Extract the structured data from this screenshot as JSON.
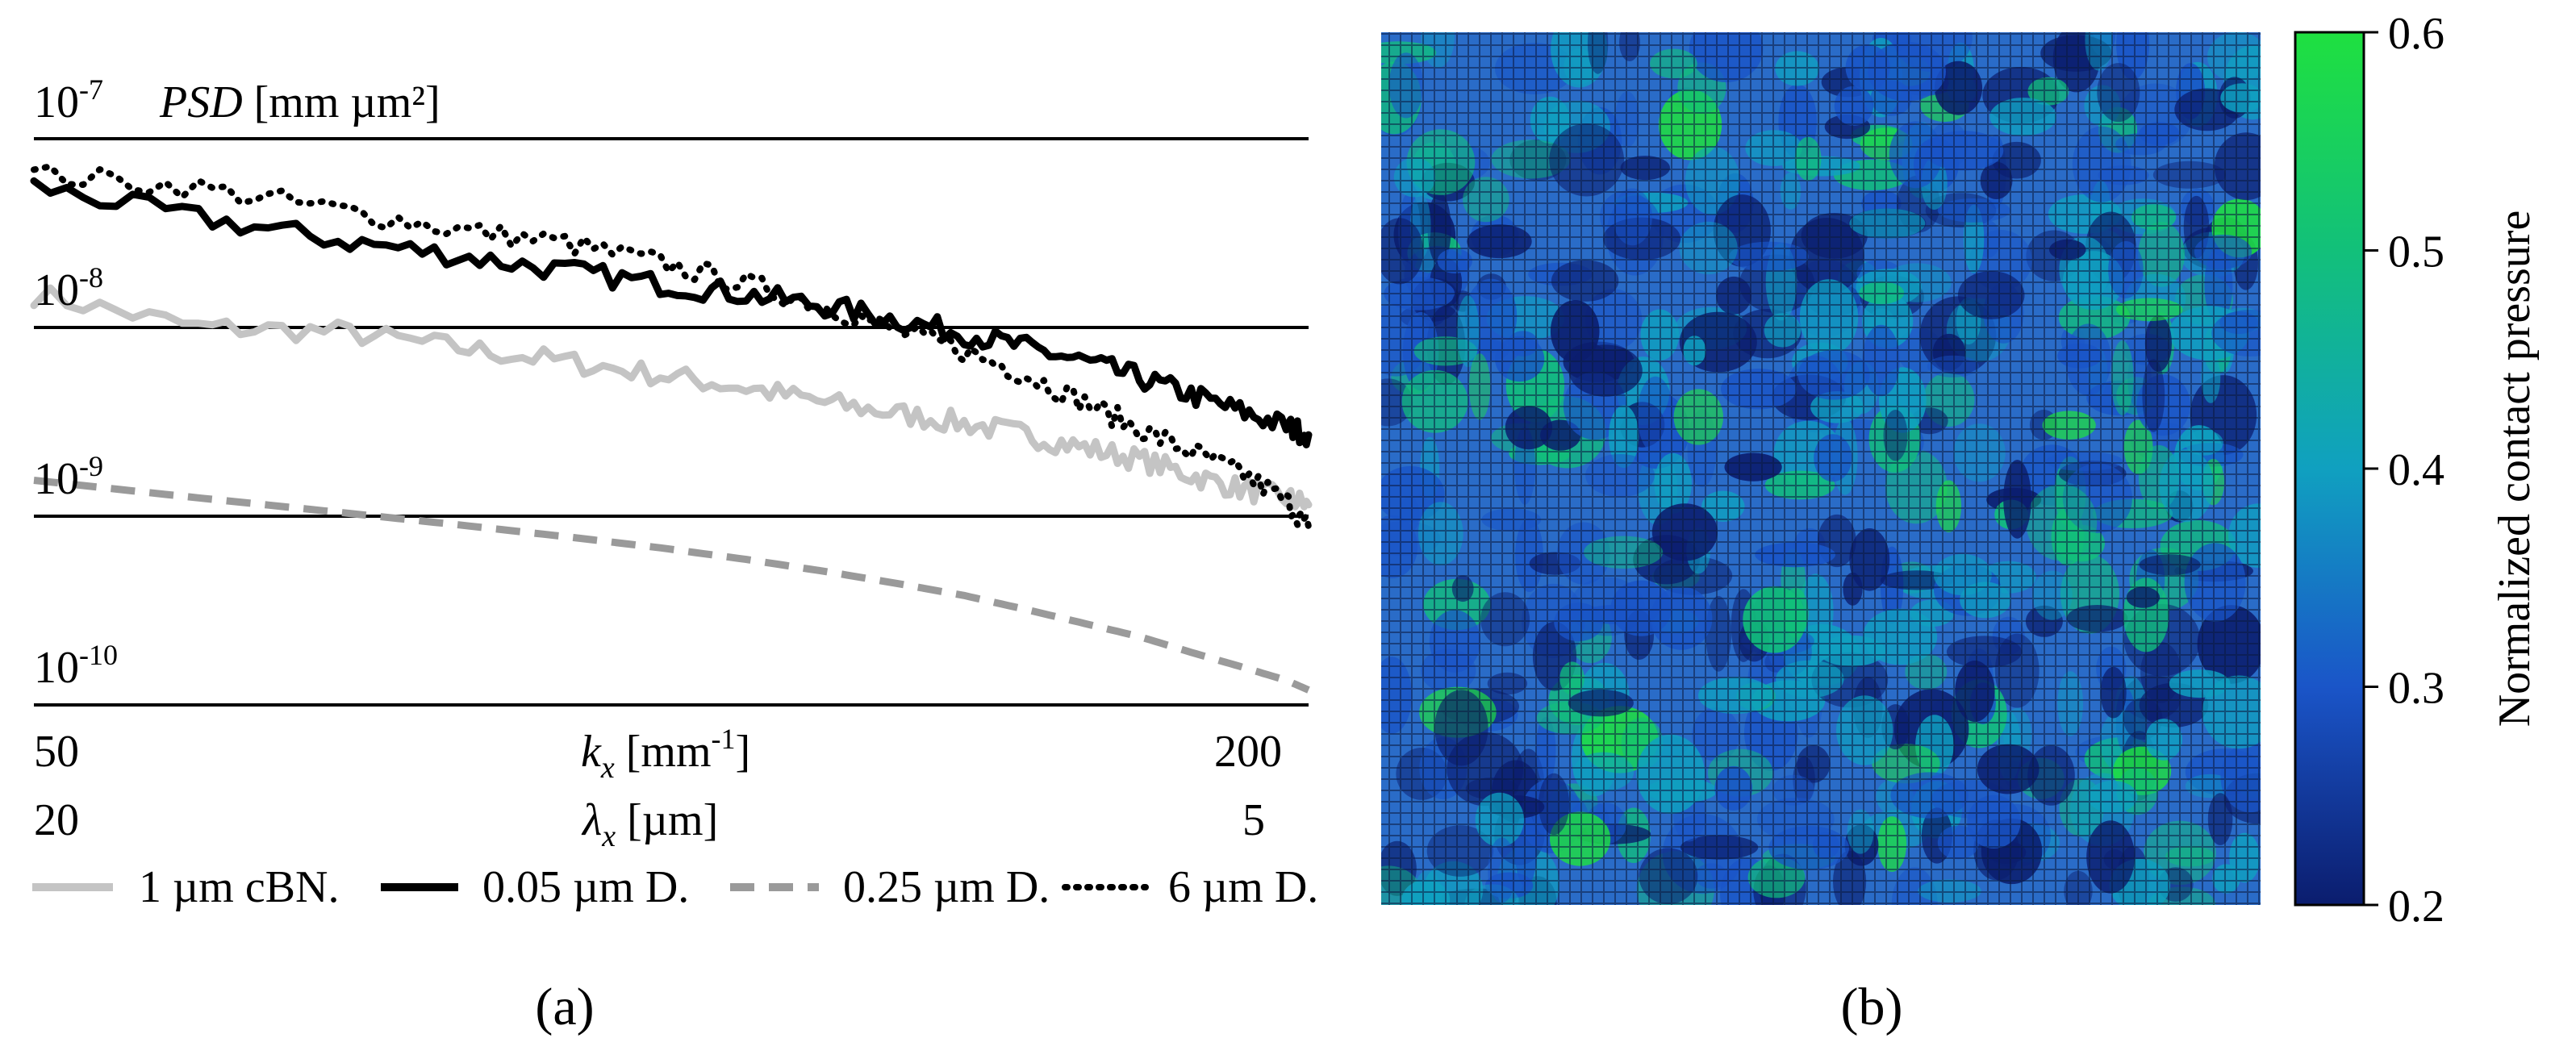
{
  "chart_data": [
    {
      "id": "a",
      "type": "line",
      "panel_label": "(a)",
      "ylabel_prefix": "PSD",
      "ylabel_unit": " [mm µm²]",
      "yscale": "log",
      "ylim": [
        1e-10,
        1e-07
      ],
      "y_ticks": [
        {
          "base": "10",
          "exp": "-7"
        },
        {
          "base": "10",
          "exp": "-8"
        },
        {
          "base": "10",
          "exp": "-9"
        },
        {
          "base": "10",
          "exp": "-10"
        }
      ],
      "xlabel1": {
        "sym": "k",
        "sub": "x",
        "unit_pre": " [mm",
        "unit_exp": "-1",
        "unit_post": "]"
      },
      "xlabel2": {
        "sym": "λ",
        "sub": "x",
        "unit": " [µm]"
      },
      "x_ticks_k": [
        "50",
        "200"
      ],
      "x_ticks_lambda": [
        "20",
        "5"
      ],
      "xlim_k": [
        50,
        205
      ],
      "series": [
        {
          "name": "1 µm cBN.",
          "style": "solid",
          "color": "#c4c4c4",
          "x": [
            50,
            60,
            70,
            80,
            90,
            100,
            110,
            120,
            130,
            140,
            150,
            160,
            170,
            180,
            190,
            200,
            205
          ],
          "y": [
            1.5e-08,
            1e-08,
            9.5e-09,
            7.8e-09,
            6.6e-09,
            5.6e-09,
            4.8e-09,
            4e-09,
            3.5e-09,
            3.1e-09,
            2.7e-09,
            2.3e-09,
            2e-09,
            1.65e-09,
            1.4e-09,
            1.25e-09,
            1.15e-09
          ]
        },
        {
          "name": "0.05 µm D.",
          "style": "solid",
          "color": "#000000",
          "x": [
            50,
            60,
            70,
            80,
            90,
            100,
            110,
            120,
            130,
            140,
            150,
            160,
            170,
            180,
            190,
            200,
            205
          ],
          "y": [
            5.6e-08,
            3.8e-08,
            2.9e-08,
            2.4e-08,
            2e-08,
            1.7e-08,
            1.5e-08,
            1.3e-08,
            1.1e-08,
            9.3e-09,
            7.8e-09,
            6.6e-09,
            5.4e-09,
            4.4e-09,
            3.6e-09,
            3e-09,
            2.7e-09
          ]
        },
        {
          "name": "0.25 µm D.",
          "style": "dashed",
          "color": "#9a9a9a",
          "x": [
            50,
            60,
            70,
            80,
            90,
            100,
            110,
            120,
            130,
            140,
            150,
            160,
            170,
            180,
            190,
            200,
            205
          ],
          "y": [
            1.55e-09,
            1.25e-09,
            1.05e-09,
            9e-10,
            7.8e-10,
            6.8e-10,
            5.9e-10,
            5.1e-10,
            4.4e-10,
            3.8e-10,
            3.2e-10,
            2.7e-10,
            2.3e-10,
            1.9e-10,
            1.6e-10,
            1.35e-10,
            1.2e-10
          ]
        },
        {
          "name": "6 µm D.",
          "style": "dotted",
          "color": "#000000",
          "x": [
            50,
            60,
            70,
            80,
            90,
            100,
            110,
            120,
            130,
            140,
            150,
            160,
            170,
            180,
            190,
            200,
            205
          ],
          "y": [
            6.5e-08,
            5.5e-08,
            4.2e-08,
            3.3e-08,
            2.8e-08,
            2.2e-08,
            1.7e-08,
            1.3e-08,
            9.6e-09,
            7.5e-09,
            5.6e-09,
            4e-09,
            2.9e-09,
            2.2e-09,
            1.7e-09,
            1.2e-09,
            8.8e-10
          ]
        }
      ]
    },
    {
      "id": "b",
      "type": "heatmap",
      "panel_label": "(b)",
      "colorbar_label": "Normalized contact pressure",
      "colorbar_range": [
        0.2,
        0.6
      ],
      "colorbar_ticks": [
        "0.6",
        "0.5",
        "0.4",
        "0.3",
        "0.2"
      ],
      "colorscale": [
        "#0b1d6e",
        "#1a55c8",
        "#10a0c0",
        "#12c07a",
        "#1fe040"
      ],
      "background_color": "#2a6cc8"
    }
  ]
}
